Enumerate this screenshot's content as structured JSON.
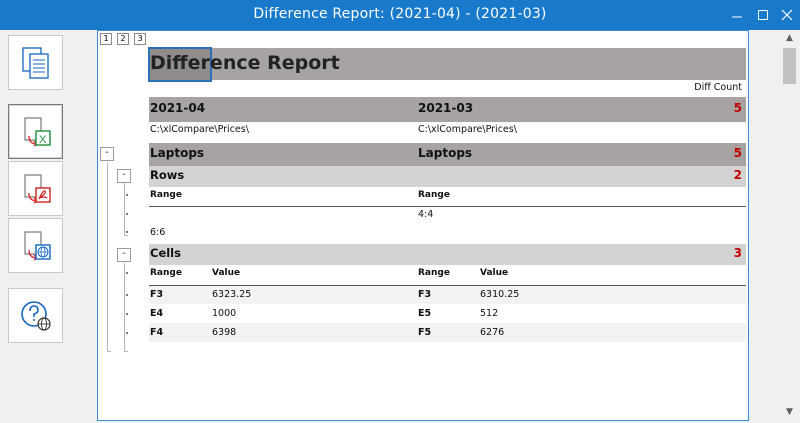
{
  "window": {
    "title": "Difference Report: (2021-04) - (2021-03)"
  },
  "sidebar": {
    "buttons": [
      "copy-icon",
      "export-excel-icon",
      "export-pdf-icon",
      "export-html-icon",
      "help-web-icon"
    ]
  },
  "outline_levels": [
    "1",
    "2",
    "3"
  ],
  "report": {
    "title": "Difference Report",
    "diff_count_label": "Diff Count",
    "left_name": "2021-04",
    "right_name": "2021-03",
    "total_diff": "5",
    "left_path": "C:\\xlCompare\\Prices\\",
    "right_path": "C:\\xlCompare\\Prices\\",
    "sheet": {
      "left": "Laptops",
      "right": "Laptops",
      "count": "5"
    },
    "rows_section": {
      "label": "Rows",
      "count": "2",
      "range_header_left": "Range",
      "range_header_right": "Range",
      "rows": [
        {
          "left": "",
          "right": "4:4"
        },
        {
          "left": "6:6",
          "right": ""
        }
      ]
    },
    "cells_section": {
      "label": "Cells",
      "count": "3",
      "headers": {
        "range_left": "Range",
        "value_left": "Value",
        "range_right": "Range",
        "value_right": "Value"
      },
      "rows": [
        {
          "lr": "F3",
          "lv": "6323.25",
          "rr": "F3",
          "rv": "6310.25"
        },
        {
          "lr": "E4",
          "lv": "1000",
          "rr": "E5",
          "rv": "512"
        },
        {
          "lr": "F4",
          "lv": "6398",
          "rr": "F5",
          "rv": "6276"
        }
      ]
    },
    "collapse_symbol": "-"
  },
  "colors": {
    "titlebar": "#1979ca",
    "band_dark": "#a6a3a2",
    "band_mid": "#c6c6c6",
    "band_light": "#d3d3d3",
    "stripe": "#f2f2f2",
    "diff_red": "#c00000"
  }
}
